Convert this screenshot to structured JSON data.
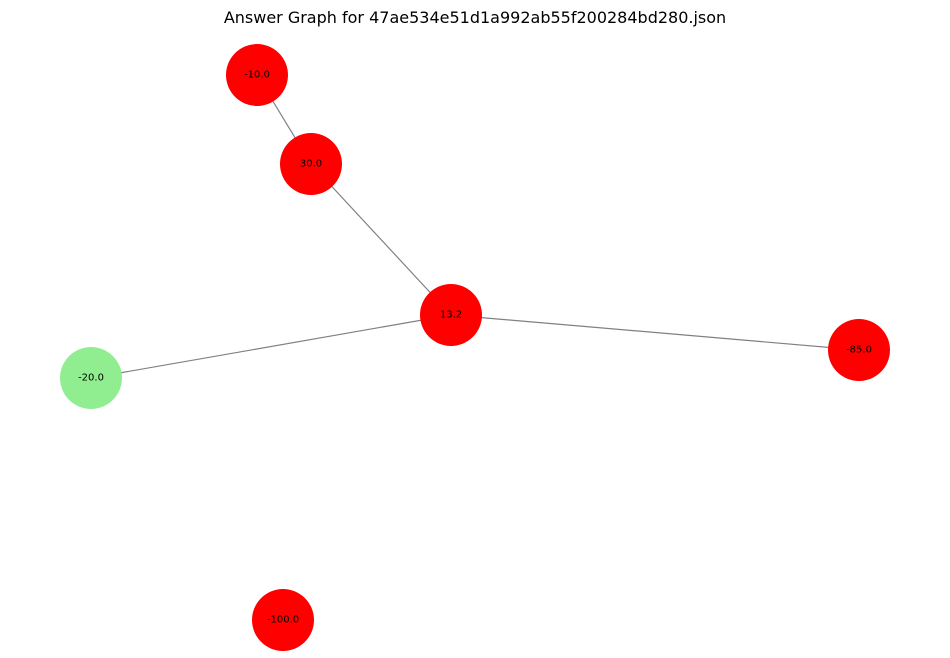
{
  "figure": {
    "title": "Answer Graph for 47ae534e51d1a992ab55f200284bd280.json"
  },
  "colors": {
    "default_node": "#ff0000",
    "answer_node": "#90ee90",
    "edge": "#808080"
  },
  "graph": {
    "nodes": [
      {
        "id": "n1",
        "label": "-10.0",
        "answer": false
      },
      {
        "id": "n2",
        "label": "30.0",
        "answer": false
      },
      {
        "id": "n3",
        "label": "13.2",
        "answer": false
      },
      {
        "id": "n4",
        "label": "-85.0",
        "answer": false
      },
      {
        "id": "n5",
        "label": "-20.0",
        "answer": true
      },
      {
        "id": "n6",
        "label": "-100.0",
        "answer": false
      }
    ],
    "edges": [
      {
        "source": "n1",
        "target": "n2"
      },
      {
        "source": "n2",
        "target": "n3"
      },
      {
        "source": "n3",
        "target": "n4"
      },
      {
        "source": "n3",
        "target": "n5"
      }
    ]
  }
}
